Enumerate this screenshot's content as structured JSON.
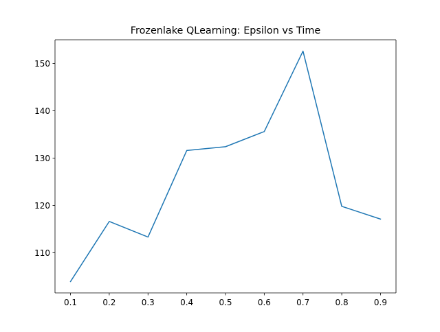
{
  "chart_data": {
    "type": "line",
    "title": "Frozenlake QLearning: Epsilon vs Time",
    "xlabel": "",
    "ylabel": "",
    "x": [
      0.1,
      0.2,
      0.3,
      0.4,
      0.5,
      0.6,
      0.7,
      0.8,
      0.9
    ],
    "series": [
      {
        "values": [
          103.9,
          116.6,
          113.3,
          131.6,
          132.4,
          135.6,
          152.6,
          119.8,
          117.1
        ],
        "color": "#1f77b4"
      }
    ],
    "xlim": [
      0.06,
      0.94
    ],
    "ylim": [
      101.5,
      155.0
    ],
    "xticks": [
      "0.1",
      "0.2",
      "0.3",
      "0.4",
      "0.5",
      "0.6",
      "0.7",
      "0.8",
      "0.9"
    ],
    "yticks": [
      "110",
      "120",
      "130",
      "140",
      "150"
    ],
    "grid": false,
    "legend": "none"
  }
}
